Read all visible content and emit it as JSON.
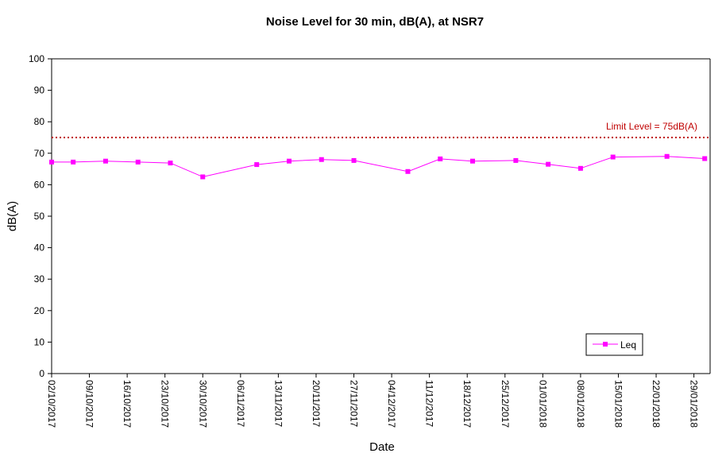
{
  "chart_data": {
    "type": "line",
    "title": "Noise Level for 30 min, dB(A), at NSR7",
    "xlabel": "Date",
    "ylabel": "dB(A)",
    "ylim": [
      0,
      100
    ],
    "yticks": [
      0,
      10,
      20,
      30,
      40,
      50,
      60,
      70,
      80,
      90,
      100
    ],
    "xlim": [
      "2017-10-02",
      "2018-02-01"
    ],
    "xtick_labels": [
      "02/10/2017",
      "09/10/2017",
      "16/10/2017",
      "23/10/2017",
      "30/10/2017",
      "06/11/2017",
      "13/11/2017",
      "20/11/2017",
      "27/11/2017",
      "04/12/2017",
      "11/12/2017",
      "18/12/2017",
      "25/12/2017",
      "01/01/2018",
      "08/01/2018",
      "15/01/2018",
      "22/01/2018",
      "29/01/2018"
    ],
    "xtick_dates": [
      "2017-10-02",
      "2017-10-09",
      "2017-10-16",
      "2017-10-23",
      "2017-10-30",
      "2017-11-06",
      "2017-11-13",
      "2017-11-20",
      "2017-11-27",
      "2017-12-04",
      "2017-12-11",
      "2017-12-18",
      "2017-12-25",
      "2018-01-01",
      "2018-01-08",
      "2018-01-15",
      "2018-01-22",
      "2018-01-29"
    ],
    "grid": false,
    "legend": {
      "position": "bottom-right",
      "entries": [
        "Leq"
      ]
    },
    "series": [
      {
        "name": "Leq",
        "color": "#ff00ff",
        "marker": "square",
        "x": [
          "2017-10-02",
          "2017-10-06",
          "2017-10-12",
          "2017-10-18",
          "2017-10-24",
          "2017-10-30",
          "2017-11-09",
          "2017-11-15",
          "2017-11-21",
          "2017-11-27",
          "2017-12-07",
          "2017-12-13",
          "2017-12-19",
          "2017-12-27",
          "2018-01-02",
          "2018-01-08",
          "2018-01-14",
          "2018-01-24",
          "2018-01-31"
        ],
        "y": [
          67.2,
          67.2,
          67.5,
          67.2,
          66.9,
          62.5,
          66.4,
          67.5,
          68.0,
          67.7,
          64.2,
          68.2,
          67.5,
          67.7,
          66.5,
          65.2,
          68.8,
          69.0,
          68.3
        ]
      }
    ],
    "reference_lines": [
      {
        "value": 75,
        "label": "Limit Level = 75dB(A)",
        "color": "#c00000",
        "style": "dotted"
      }
    ]
  }
}
